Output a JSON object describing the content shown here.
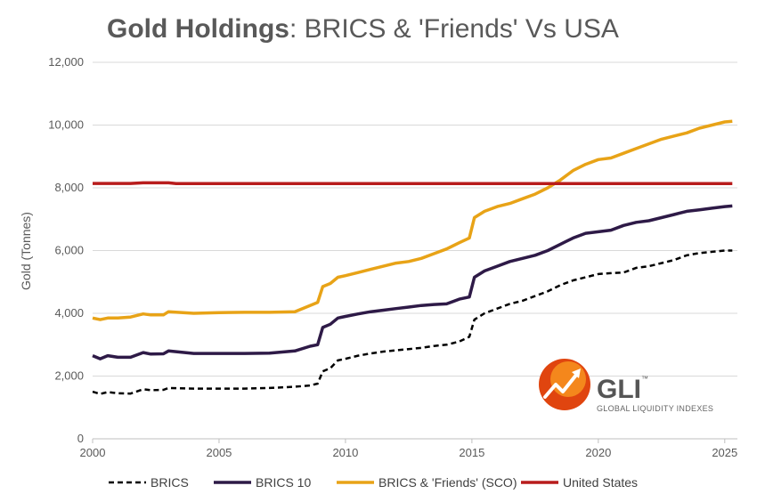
{
  "chart_data": {
    "type": "line",
    "title_bold": "Gold Holdings",
    "title_rest": ": BRICS & 'Friends' Vs USA",
    "xlabel": "",
    "ylabel": "Gold (Tonnes)",
    "xlim": [
      2000,
      2025.5
    ],
    "ylim": [
      0,
      12000
    ],
    "x_ticks": [
      2000,
      2005,
      2010,
      2015,
      2020,
      2025
    ],
    "y_ticks": [
      0,
      2000,
      4000,
      6000,
      8000,
      10000,
      12000
    ],
    "y_tick_labels": [
      "0",
      "2,000",
      "4,000",
      "6,000",
      "8,000",
      "10,000",
      "12,000"
    ],
    "grid": true,
    "legend_position": "bottom",
    "series": [
      {
        "name": "BRICS",
        "color": "#000000",
        "style": "dashed",
        "x": [
          2000,
          2000.3,
          2000.6,
          2001,
          2001.5,
          2002,
          2002.3,
          2002.8,
          2003,
          2004,
          2005,
          2006,
          2007,
          2008,
          2008.6,
          2008.9,
          2009.1,
          2009.4,
          2009.7,
          2010,
          2010.5,
          2011,
          2011.5,
          2012,
          2012.5,
          2013,
          2013.5,
          2014,
          2014.5,
          2014.9,
          2015.1,
          2015.5,
          2016,
          2016.5,
          2017,
          2017.5,
          2018,
          2018.5,
          2019,
          2019.5,
          2020,
          2020.5,
          2021,
          2021.5,
          2022,
          2022.5,
          2023,
          2023.5,
          2024,
          2024.5,
          2025,
          2025.3
        ],
        "values": [
          1500,
          1430,
          1490,
          1450,
          1440,
          1580,
          1550,
          1560,
          1620,
          1600,
          1600,
          1600,
          1620,
          1660,
          1700,
          1760,
          2150,
          2250,
          2500,
          2550,
          2650,
          2720,
          2780,
          2820,
          2860,
          2900,
          2960,
          3000,
          3100,
          3250,
          3800,
          4000,
          4150,
          4300,
          4400,
          4550,
          4700,
          4900,
          5050,
          5150,
          5250,
          5280,
          5300,
          5450,
          5500,
          5600,
          5700,
          5850,
          5920,
          5960,
          6000,
          6000
        ]
      },
      {
        "name": "BRICS 10",
        "color": "#2e1a47",
        "style": "solid",
        "x": [
          2000,
          2000.3,
          2000.6,
          2001,
          2001.5,
          2002,
          2002.3,
          2002.8,
          2003,
          2004,
          2005,
          2006,
          2007,
          2008,
          2008.6,
          2008.9,
          2009.1,
          2009.4,
          2009.7,
          2010,
          2010.5,
          2011,
          2011.5,
          2012,
          2012.5,
          2013,
          2013.5,
          2014,
          2014.5,
          2014.9,
          2015.1,
          2015.5,
          2016,
          2016.5,
          2017,
          2017.5,
          2018,
          2018.5,
          2019,
          2019.5,
          2020,
          2020.5,
          2021,
          2021.5,
          2022,
          2022.5,
          2023,
          2023.5,
          2024,
          2024.5,
          2025,
          2025.3
        ],
        "values": [
          2650,
          2550,
          2650,
          2600,
          2600,
          2750,
          2700,
          2710,
          2800,
          2720,
          2720,
          2720,
          2730,
          2800,
          2950,
          3000,
          3550,
          3650,
          3850,
          3900,
          3980,
          4050,
          4100,
          4150,
          4200,
          4250,
          4280,
          4300,
          4450,
          4520,
          5150,
          5350,
          5500,
          5650,
          5750,
          5850,
          6000,
          6200,
          6400,
          6550,
          6600,
          6650,
          6800,
          6900,
          6950,
          7050,
          7150,
          7250,
          7300,
          7350,
          7400,
          7420
        ]
      },
      {
        "name": "BRICS & 'Friends' (SCO)",
        "color": "#e8a317",
        "style": "solid",
        "x": [
          2000,
          2000.3,
          2000.6,
          2001,
          2001.5,
          2002,
          2002.3,
          2002.8,
          2003,
          2004,
          2005,
          2006,
          2007,
          2008,
          2008.6,
          2008.9,
          2009.1,
          2009.4,
          2009.7,
          2010,
          2010.5,
          2011,
          2011.5,
          2012,
          2012.5,
          2013,
          2013.5,
          2014,
          2014.5,
          2014.9,
          2015.1,
          2015.5,
          2016,
          2016.5,
          2017,
          2017.5,
          2018,
          2018.5,
          2019,
          2019.5,
          2020,
          2020.5,
          2021,
          2021.5,
          2022,
          2022.5,
          2023,
          2023.5,
          2024,
          2024.5,
          2025,
          2025.3
        ],
        "values": [
          3850,
          3800,
          3850,
          3850,
          3880,
          3980,
          3950,
          3950,
          4050,
          4000,
          4020,
          4030,
          4030,
          4050,
          4250,
          4350,
          4850,
          4950,
          5150,
          5200,
          5300,
          5400,
          5500,
          5600,
          5650,
          5750,
          5900,
          6050,
          6250,
          6400,
          7050,
          7250,
          7400,
          7500,
          7650,
          7800,
          8000,
          8250,
          8550,
          8750,
          8900,
          8950,
          9100,
          9250,
          9400,
          9550,
          9650,
          9750,
          9900,
          10000,
          10100,
          10120
        ]
      },
      {
        "name": "United States",
        "color": "#b81c1c",
        "style": "solid",
        "x": [
          2000,
          2001.5,
          2002,
          2003,
          2003.3,
          2005,
          2010,
          2015,
          2020,
          2025.3
        ],
        "values": [
          8140,
          8140,
          8160,
          8160,
          8135,
          8135,
          8135,
          8135,
          8135,
          8135
        ]
      }
    ]
  },
  "logo": {
    "name": "GLI",
    "trademark": "™",
    "tagline": "GLOBAL LIQUIDITY INDEXES",
    "colors": {
      "outer": "#e0450f",
      "inner": "#f7931e",
      "wordmark": "#555555"
    }
  }
}
